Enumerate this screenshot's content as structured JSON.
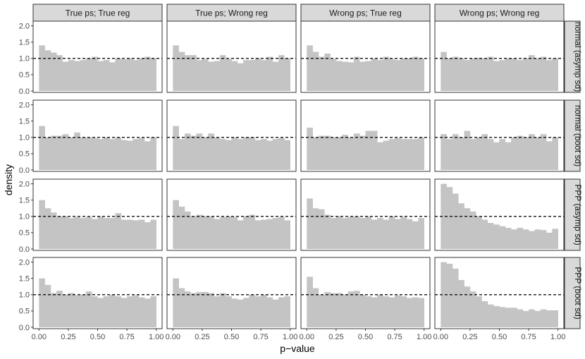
{
  "chart_data": {
    "type": "bar",
    "kind": "faceted-histogram",
    "xlabel": "p−value",
    "ylabel": "density",
    "xlim": [
      0,
      1
    ],
    "ylim": [
      0,
      2.1
    ],
    "x_ticks": [
      "0.00",
      "0.25",
      "0.50",
      "0.75",
      "1.00"
    ],
    "y_ticks": [
      "0.0",
      "0.5",
      "1.0",
      "1.5",
      "2.0"
    ],
    "reference_line": {
      "y": 1.0,
      "style": "dashed"
    },
    "bins": 20,
    "bin_width": 0.05,
    "column_facets": [
      "True ps; True reg",
      "True ps; Wrong reg",
      "Wrong ps; True reg",
      "Wrong ps; Wrong reg"
    ],
    "row_facets": [
      "normal (asymp sd)",
      "normal (boot sd)",
      "PPP (asymp sd)",
      "PPP (boot sd)"
    ],
    "panels": [
      [
        [
          1.4,
          1.25,
          1.18,
          1.1,
          0.9,
          0.95,
          0.92,
          0.95,
          1.0,
          1.05,
          0.92,
          0.95,
          0.88,
          1.0,
          0.97,
          1.0,
          0.95,
          1.0,
          1.05,
          1.0
        ],
        [
          1.4,
          1.2,
          1.1,
          1.1,
          0.95,
          0.98,
          0.9,
          0.92,
          1.1,
          0.98,
          0.92,
          0.85,
          0.95,
          0.95,
          1.0,
          0.95,
          1.05,
          0.9,
          1.1,
          1.0
        ],
        [
          1.4,
          1.2,
          1.05,
          1.15,
          0.98,
          0.92,
          0.9,
          0.88,
          1.05,
          0.9,
          0.92,
          1.0,
          0.95,
          1.05,
          0.98,
          0.95,
          1.0,
          1.0,
          1.05,
          1.0
        ],
        [
          1.2,
          1.0,
          1.05,
          1.0,
          0.95,
          1.0,
          1.02,
          1.0,
          1.05,
          0.92,
          0.95,
          1.0,
          1.0,
          0.95,
          1.0,
          1.1,
          1.0,
          1.05,
          0.95,
          1.0
        ]
      ],
      [
        [
          1.35,
          1.0,
          1.05,
          1.05,
          1.1,
          1.0,
          1.15,
          1.0,
          1.0,
          0.98,
          0.95,
          1.0,
          0.95,
          1.0,
          0.92,
          0.9,
          0.95,
          0.98,
          0.88,
          1.0
        ],
        [
          1.35,
          0.95,
          1.12,
          1.05,
          1.12,
          1.0,
          1.12,
          1.0,
          0.95,
          0.92,
          1.0,
          0.95,
          1.0,
          1.0,
          0.92,
          0.95,
          0.9,
          0.95,
          0.98,
          0.92
        ],
        [
          1.3,
          1.0,
          1.05,
          1.05,
          1.0,
          1.0,
          1.08,
          1.0,
          1.12,
          1.05,
          1.2,
          1.2,
          0.85,
          0.9,
          0.95,
          0.98,
          0.95,
          0.95,
          0.95,
          1.0
        ],
        [
          1.1,
          0.95,
          1.1,
          1.0,
          1.2,
          0.95,
          1.0,
          1.1,
          0.95,
          0.85,
          0.95,
          0.85,
          1.0,
          1.05,
          1.0,
          1.1,
          1.0,
          1.1,
          0.88,
          1.0
        ]
      ],
      [
        [
          1.5,
          1.25,
          1.12,
          1.0,
          1.0,
          0.95,
          0.98,
          0.95,
          0.98,
          0.92,
          1.0,
          0.95,
          0.95,
          1.1,
          0.9,
          0.9,
          0.88,
          0.9,
          0.82,
          0.9
        ],
        [
          1.5,
          1.3,
          1.15,
          1.0,
          1.05,
          1.0,
          1.0,
          0.92,
          0.98,
          1.0,
          0.98,
          0.88,
          1.0,
          1.05,
          0.88,
          0.9,
          0.92,
          0.95,
          0.98,
          0.88
        ],
        [
          1.55,
          1.25,
          1.22,
          1.05,
          0.95,
          1.0,
          0.95,
          0.98,
          1.0,
          0.95,
          1.0,
          0.9,
          0.95,
          0.9,
          1.0,
          0.92,
          0.98,
          0.92,
          0.85,
          0.95
        ],
        [
          2.0,
          1.9,
          1.7,
          1.4,
          1.25,
          1.15,
          1.0,
          0.9,
          0.8,
          0.75,
          0.7,
          0.65,
          0.6,
          0.65,
          0.6,
          0.55,
          0.6,
          0.58,
          0.5,
          0.62
        ]
      ],
      [
        [
          1.5,
          1.3,
          1.05,
          1.12,
          1.0,
          1.05,
          0.98,
          1.0,
          1.1,
          0.95,
          0.9,
          0.95,
          1.0,
          0.95,
          0.9,
          0.95,
          0.98,
          0.92,
          0.88,
          0.95
        ],
        [
          1.5,
          1.2,
          1.1,
          1.05,
          1.08,
          1.08,
          1.05,
          0.95,
          1.05,
          0.95,
          0.88,
          0.85,
          0.9,
          1.0,
          0.95,
          1.0,
          0.92,
          0.85,
          0.92,
          0.95
        ],
        [
          1.55,
          1.2,
          1.0,
          1.08,
          1.05,
          1.05,
          1.0,
          1.1,
          1.12,
          1.0,
          0.95,
          0.92,
          1.0,
          0.95,
          0.92,
          0.98,
          0.95,
          0.9,
          0.92,
          0.9
        ],
        [
          2.0,
          1.95,
          1.8,
          1.45,
          1.25,
          1.1,
          0.95,
          0.8,
          0.7,
          0.65,
          0.62,
          0.6,
          0.6,
          0.55,
          0.5,
          0.55,
          0.5,
          0.55,
          0.52,
          0.52
        ]
      ]
    ]
  },
  "colors": {
    "bar_fill": "#c4c4c4",
    "strip_fill": "#d9d9d9",
    "strip_border": "#333333",
    "panel_border": "#333333",
    "reference_line": "#111111",
    "axis_text": "#4d4d4d",
    "label_text": "#000000"
  }
}
